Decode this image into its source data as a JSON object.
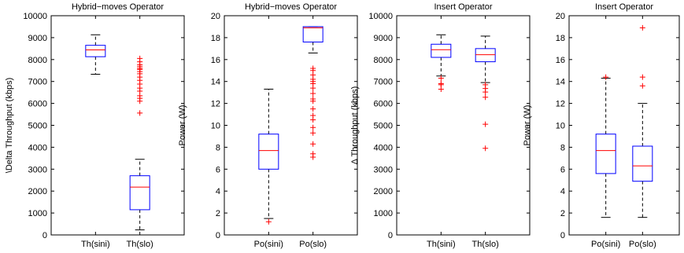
{
  "chart_data": [
    {
      "type": "box",
      "title": "Hybrid−moves Operator",
      "xlabel": "",
      "ylabel": "\\Delta Throughput (kbps)",
      "ylim": [
        0,
        10000
      ],
      "yticks": [
        0,
        1000,
        2000,
        3000,
        4000,
        5000,
        6000,
        7000,
        8000,
        9000,
        10000
      ],
      "categories": [
        "Th(sini)",
        "Th(slo)"
      ],
      "boxes": [
        {
          "whisker_low": 7330,
          "q1": 8130,
          "median": 8440,
          "q3": 8650,
          "whisker_high": 9130,
          "outliers": []
        },
        {
          "whisker_low": 230,
          "q1": 1150,
          "median": 2180,
          "q3": 2700,
          "whisker_high": 3450,
          "outliers": [
            5560,
            6100,
            6230,
            6350,
            6560,
            6700,
            6880,
            7050,
            7200,
            7350,
            7450,
            7550,
            7600,
            7680,
            7760,
            7900,
            8050
          ]
        }
      ]
    },
    {
      "type": "box",
      "title": "Hybrid−moves Operator",
      "xlabel": "",
      "ylabel": "Power (W)",
      "ylim": [
        0,
        20
      ],
      "yticks": [
        0,
        2,
        4,
        6,
        8,
        10,
        12,
        14,
        16,
        18,
        20
      ],
      "categories": [
        "Po(sini)",
        "Po(slo)"
      ],
      "boxes": [
        {
          "whisker_low": 1.5,
          "q1": 6.0,
          "median": 7.7,
          "q3": 9.2,
          "whisker_high": 13.3,
          "outliers": [
            1.2
          ]
        },
        {
          "whisker_low": 16.6,
          "q1": 17.6,
          "median": 18.9,
          "q3": 19.0,
          "whisker_high": 19.0,
          "outliers": [
            7.1,
            7.4,
            8.3,
            9.3,
            9.8,
            10.5,
            10.9,
            11.5,
            12.2,
            12.4,
            12.9,
            13.4,
            13.8,
            14.0,
            14.2,
            14.6,
            15.0,
            15.2
          ]
        }
      ]
    },
    {
      "type": "box",
      "title": "Insert Operator",
      "xlabel": "",
      "ylabel": "Δ Throughput (kbps)",
      "ylim": [
        0,
        10000
      ],
      "yticks": [
        0,
        1000,
        2000,
        3000,
        4000,
        5000,
        6000,
        7000,
        8000,
        9000,
        10000
      ],
      "categories": [
        "Th(sini)",
        "Th(slo)"
      ],
      "boxes": [
        {
          "whisker_low": 7250,
          "q1": 8100,
          "median": 8450,
          "q3": 8700,
          "whisker_high": 9130,
          "outliers": [
            6650,
            6850,
            6900,
            7150
          ]
        },
        {
          "whisker_low": 6950,
          "q1": 7900,
          "median": 8220,
          "q3": 8500,
          "whisker_high": 9070,
          "outliers": [
            3950,
            5050,
            6280,
            6520,
            6680,
            6850
          ]
        }
      ]
    },
    {
      "type": "box",
      "title": "Insert Operator",
      "xlabel": "",
      "ylabel": "Power (W)",
      "ylim": [
        0,
        20
      ],
      "yticks": [
        0,
        2,
        4,
        6,
        8,
        10,
        12,
        14,
        16,
        18,
        20
      ],
      "categories": [
        "Po(sini)",
        "Po(slo)"
      ],
      "boxes": [
        {
          "whisker_low": 1.6,
          "q1": 5.6,
          "median": 7.7,
          "q3": 9.2,
          "whisker_high": 14.3,
          "outliers": [
            14.4
          ]
        },
        {
          "whisker_low": 1.6,
          "q1": 4.9,
          "median": 6.3,
          "q3": 8.1,
          "whisker_high": 12.0,
          "outliers": [
            13.6,
            14.4,
            18.9
          ]
        }
      ]
    }
  ],
  "colors": {
    "box": "#0000ff",
    "median": "#ff0000",
    "outlier": "#ff0000",
    "whisker": "#000000",
    "axis": "#000000"
  }
}
